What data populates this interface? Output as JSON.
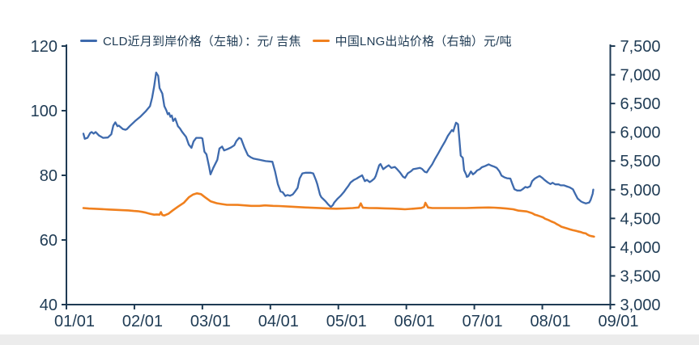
{
  "colors": {
    "axis": "#1F3B54",
    "blue_line": "#3E6AAD",
    "orange_line": "#F0801E",
    "background": "#ffffff",
    "bottom_strip": "#ececec"
  },
  "legend": [
    {
      "label": "CLD近月到岸价格（左轴）：元/ 吉焦",
      "color": "#3E6AAD"
    },
    {
      "label": "中国LNG出站价格（右轴）元/吨",
      "color": "#F0801E"
    }
  ],
  "chart_data": {
    "type": "line",
    "title": "",
    "grid": false,
    "legend_position": "top",
    "x_axis": {
      "labels": [
        "01/01",
        "02/01",
        "03/01",
        "04/01",
        "05/01",
        "06/01",
        "07/01",
        "08/01",
        "09/01"
      ]
    },
    "left_axis": {
      "min": 40,
      "max": 120,
      "ticks": [
        120,
        100,
        80,
        60,
        40
      ]
    },
    "right_axis": {
      "min": 3000,
      "max": 7500,
      "ticks": [
        7500,
        7000,
        6500,
        6000,
        5500,
        5000,
        4500,
        4000,
        3500,
        3000
      ]
    },
    "series": [
      {
        "name": "CLD近月到岸价格（左轴）：元/ 吉焦",
        "axis": "left",
        "color": "#3E6AAD",
        "points": [
          [
            0.25,
            92.9
          ],
          [
            0.27,
            91.3
          ],
          [
            0.31,
            91.6
          ],
          [
            0.35,
            93.1
          ],
          [
            0.37,
            93.4
          ],
          [
            0.4,
            92.9
          ],
          [
            0.43,
            93.4
          ],
          [
            0.48,
            92.3
          ],
          [
            0.54,
            91.6
          ],
          [
            0.61,
            91.7
          ],
          [
            0.66,
            92.7
          ],
          [
            0.69,
            95.4
          ],
          [
            0.72,
            96.4
          ],
          [
            0.75,
            95.2
          ],
          [
            0.77,
            95.4
          ],
          [
            0.83,
            94.3
          ],
          [
            0.87,
            94.1
          ],
          [
            0.89,
            94.3
          ],
          [
            0.93,
            95.2
          ],
          [
            1.01,
            96.8
          ],
          [
            1.09,
            98.2
          ],
          [
            1.17,
            99.9
          ],
          [
            1.23,
            101.4
          ],
          [
            1.26,
            104.0
          ],
          [
            1.29,
            107.5
          ],
          [
            1.32,
            111.8
          ],
          [
            1.35,
            110.8
          ],
          [
            1.37,
            107.0
          ],
          [
            1.41,
            105.3
          ],
          [
            1.44,
            101.4
          ],
          [
            1.47,
            100.1
          ],
          [
            1.49,
            98.9
          ],
          [
            1.51,
            99.3
          ],
          [
            1.53,
            98.1
          ],
          [
            1.55,
            98.5
          ],
          [
            1.57,
            96.8
          ],
          [
            1.6,
            97.6
          ],
          [
            1.62,
            96.4
          ],
          [
            1.64,
            95.2
          ],
          [
            1.67,
            94.5
          ],
          [
            1.7,
            93.5
          ],
          [
            1.76,
            91.9
          ],
          [
            1.8,
            89.5
          ],
          [
            1.84,
            88.5
          ],
          [
            1.87,
            90.5
          ],
          [
            1.91,
            91.6
          ],
          [
            1.98,
            91.6
          ],
          [
            2.0,
            91.4
          ],
          [
            2.03,
            87.3
          ],
          [
            2.06,
            86.5
          ],
          [
            2.1,
            82.5
          ],
          [
            2.12,
            80.3
          ],
          [
            2.16,
            82.3
          ],
          [
            2.22,
            84.8
          ],
          [
            2.25,
            88.3
          ],
          [
            2.29,
            88.9
          ],
          [
            2.32,
            87.7
          ],
          [
            2.37,
            88.1
          ],
          [
            2.42,
            88.6
          ],
          [
            2.47,
            89.3
          ],
          [
            2.5,
            90.6
          ],
          [
            2.54,
            91.6
          ],
          [
            2.57,
            91.3
          ],
          [
            2.62,
            88.5
          ],
          [
            2.67,
            86.2
          ],
          [
            2.71,
            85.6
          ],
          [
            2.75,
            85.2
          ],
          [
            2.84,
            84.8
          ],
          [
            2.93,
            84.4
          ],
          [
            3.03,
            84.2
          ],
          [
            3.07,
            81.1
          ],
          [
            3.11,
            77.3
          ],
          [
            3.15,
            75.0
          ],
          [
            3.18,
            74.8
          ],
          [
            3.22,
            73.6
          ],
          [
            3.25,
            73.9
          ],
          [
            3.29,
            73.7
          ],
          [
            3.33,
            74.1
          ],
          [
            3.36,
            74.9
          ],
          [
            3.4,
            76.1
          ],
          [
            3.43,
            79.0
          ],
          [
            3.47,
            80.6
          ],
          [
            3.52,
            80.8
          ],
          [
            3.59,
            80.8
          ],
          [
            3.63,
            80.6
          ],
          [
            3.67,
            78.5
          ],
          [
            3.69,
            77.3
          ],
          [
            3.73,
            74.0
          ],
          [
            3.75,
            73.2
          ],
          [
            3.81,
            72.0
          ],
          [
            3.85,
            71.0
          ],
          [
            3.89,
            70.2
          ],
          [
            3.92,
            70.8
          ],
          [
            3.94,
            71.6
          ],
          [
            3.99,
            72.8
          ],
          [
            4.03,
            73.6
          ],
          [
            4.08,
            74.8
          ],
          [
            4.11,
            75.7
          ],
          [
            4.15,
            76.8
          ],
          [
            4.18,
            77.8
          ],
          [
            4.23,
            78.6
          ],
          [
            4.27,
            79.0
          ],
          [
            4.3,
            79.4
          ],
          [
            4.35,
            80.0
          ],
          [
            4.39,
            78.2
          ],
          [
            4.42,
            78.6
          ],
          [
            4.46,
            77.9
          ],
          [
            4.49,
            78.3
          ],
          [
            4.53,
            79.0
          ],
          [
            4.55,
            79.8
          ],
          [
            4.6,
            83.1
          ],
          [
            4.62,
            83.5
          ],
          [
            4.66,
            81.9
          ],
          [
            4.71,
            82.7
          ],
          [
            4.74,
            83.1
          ],
          [
            4.78,
            82.3
          ],
          [
            4.83,
            82.6
          ],
          [
            4.86,
            82.0
          ],
          [
            4.91,
            80.8
          ],
          [
            4.95,
            79.6
          ],
          [
            4.98,
            79.2
          ],
          [
            5.02,
            80.6
          ],
          [
            5.07,
            81.3
          ],
          [
            5.1,
            81.9
          ],
          [
            5.15,
            82.1
          ],
          [
            5.2,
            82.3
          ],
          [
            5.23,
            82.0
          ],
          [
            5.27,
            81.1
          ],
          [
            5.3,
            80.9
          ],
          [
            5.33,
            81.9
          ],
          [
            5.38,
            83.4
          ],
          [
            5.42,
            85.0
          ],
          [
            5.47,
            86.8
          ],
          [
            5.52,
            88.7
          ],
          [
            5.57,
            90.5
          ],
          [
            5.61,
            92.2
          ],
          [
            5.65,
            93.4
          ],
          [
            5.67,
            94.0
          ],
          [
            5.69,
            93.6
          ],
          [
            5.71,
            95.0
          ],
          [
            5.73,
            96.3
          ],
          [
            5.76,
            95.8
          ],
          [
            5.78,
            91.0
          ],
          [
            5.8,
            86.1
          ],
          [
            5.83,
            85.4
          ],
          [
            5.85,
            81.6
          ],
          [
            5.88,
            80.2
          ],
          [
            5.89,
            79.5
          ],
          [
            5.91,
            79.7
          ],
          [
            5.95,
            81.2
          ],
          [
            5.98,
            80.3
          ],
          [
            6.01,
            80.8
          ],
          [
            6.04,
            81.5
          ],
          [
            6.08,
            81.9
          ],
          [
            6.11,
            82.5
          ],
          [
            6.16,
            82.9
          ],
          [
            6.21,
            83.4
          ],
          [
            6.25,
            83.0
          ],
          [
            6.29,
            82.7
          ],
          [
            6.33,
            82.3
          ],
          [
            6.37,
            81.2
          ],
          [
            6.4,
            79.9
          ],
          [
            6.44,
            79.4
          ],
          [
            6.48,
            79.1
          ],
          [
            6.53,
            79.0
          ],
          [
            6.56,
            77.3
          ],
          [
            6.59,
            75.7
          ],
          [
            6.63,
            75.3
          ],
          [
            6.68,
            75.3
          ],
          [
            6.71,
            75.7
          ],
          [
            6.75,
            76.4
          ],
          [
            6.78,
            76.2
          ],
          [
            6.82,
            76.6
          ],
          [
            6.85,
            78.2
          ],
          [
            6.89,
            79.0
          ],
          [
            6.93,
            79.5
          ],
          [
            6.96,
            79.8
          ],
          [
            7.0,
            79.2
          ],
          [
            7.03,
            78.6
          ],
          [
            7.08,
            77.8
          ],
          [
            7.12,
            77.3
          ],
          [
            7.15,
            77.7
          ],
          [
            7.19,
            77.2
          ],
          [
            7.24,
            77.2
          ],
          [
            7.27,
            76.9
          ],
          [
            7.32,
            76.9
          ],
          [
            7.37,
            76.5
          ],
          [
            7.4,
            76.3
          ],
          [
            7.45,
            75.7
          ],
          [
            7.49,
            74.0
          ],
          [
            7.52,
            72.8
          ],
          [
            7.57,
            71.9
          ],
          [
            7.6,
            71.6
          ],
          [
            7.64,
            71.3
          ],
          [
            7.69,
            71.6
          ],
          [
            7.71,
            72.4
          ],
          [
            7.74,
            74.3
          ],
          [
            7.75,
            75.6
          ]
        ]
      },
      {
        "name": "中国LNG出站价格（右轴）元/吨",
        "axis": "right",
        "color": "#F0801E",
        "points": [
          [
            0.25,
            4680
          ],
          [
            0.33,
            4672
          ],
          [
            0.43,
            4668
          ],
          [
            0.52,
            4662
          ],
          [
            0.62,
            4655
          ],
          [
            0.72,
            4650
          ],
          [
            0.81,
            4644
          ],
          [
            0.91,
            4640
          ],
          [
            0.99,
            4630
          ],
          [
            1.05,
            4625
          ],
          [
            1.11,
            4615
          ],
          [
            1.17,
            4600
          ],
          [
            1.23,
            4580
          ],
          [
            1.29,
            4565
          ],
          [
            1.33,
            4570
          ],
          [
            1.37,
            4565
          ],
          [
            1.39,
            4610
          ],
          [
            1.41,
            4560
          ],
          [
            1.44,
            4551
          ],
          [
            1.5,
            4580
          ],
          [
            1.56,
            4635
          ],
          [
            1.64,
            4704
          ],
          [
            1.73,
            4774
          ],
          [
            1.8,
            4868
          ],
          [
            1.86,
            4914
          ],
          [
            1.92,
            4937
          ],
          [
            1.98,
            4923
          ],
          [
            2.04,
            4868
          ],
          [
            2.12,
            4798
          ],
          [
            2.21,
            4765
          ],
          [
            2.28,
            4751
          ],
          [
            2.36,
            4737
          ],
          [
            2.52,
            4735
          ],
          [
            2.6,
            4728
          ],
          [
            2.72,
            4719
          ],
          [
            2.84,
            4719
          ],
          [
            2.92,
            4727
          ],
          [
            3.04,
            4719
          ],
          [
            3.13,
            4715
          ],
          [
            3.31,
            4705
          ],
          [
            3.52,
            4691
          ],
          [
            3.71,
            4682
          ],
          [
            3.87,
            4672
          ],
          [
            3.97,
            4669
          ],
          [
            4.09,
            4674
          ],
          [
            4.21,
            4680
          ],
          [
            4.3,
            4690
          ],
          [
            4.33,
            4762
          ],
          [
            4.36,
            4686
          ],
          [
            4.45,
            4680
          ],
          [
            4.57,
            4679
          ],
          [
            4.68,
            4675
          ],
          [
            4.8,
            4670
          ],
          [
            4.92,
            4664
          ],
          [
            4.98,
            4660
          ],
          [
            5.1,
            4669
          ],
          [
            5.22,
            4682
          ],
          [
            5.26,
            4700
          ],
          [
            5.28,
            4772
          ],
          [
            5.32,
            4690
          ],
          [
            5.38,
            4681
          ],
          [
            5.52,
            4680
          ],
          [
            5.7,
            4680
          ],
          [
            5.88,
            4681
          ],
          [
            6.05,
            4686
          ],
          [
            6.21,
            4691
          ],
          [
            6.29,
            4688
          ],
          [
            6.38,
            4682
          ],
          [
            6.47,
            4672
          ],
          [
            6.57,
            4659
          ],
          [
            6.65,
            4635
          ],
          [
            6.77,
            4621
          ],
          [
            6.85,
            4590
          ],
          [
            6.89,
            4565
          ],
          [
            6.92,
            4555
          ],
          [
            6.97,
            4535
          ],
          [
            7.01,
            4519
          ],
          [
            7.04,
            4495
          ],
          [
            7.09,
            4472
          ],
          [
            7.13,
            4449
          ],
          [
            7.18,
            4425
          ],
          [
            7.21,
            4402
          ],
          [
            7.25,
            4378
          ],
          [
            7.28,
            4355
          ],
          [
            7.33,
            4338
          ],
          [
            7.37,
            4323
          ],
          [
            7.41,
            4308
          ],
          [
            7.45,
            4295
          ],
          [
            7.49,
            4285
          ],
          [
            7.52,
            4276
          ],
          [
            7.57,
            4262
          ],
          [
            7.6,
            4248
          ],
          [
            7.64,
            4239
          ],
          [
            7.66,
            4220
          ],
          [
            7.69,
            4202
          ],
          [
            7.72,
            4192
          ],
          [
            7.76,
            4183
          ]
        ]
      }
    ]
  }
}
